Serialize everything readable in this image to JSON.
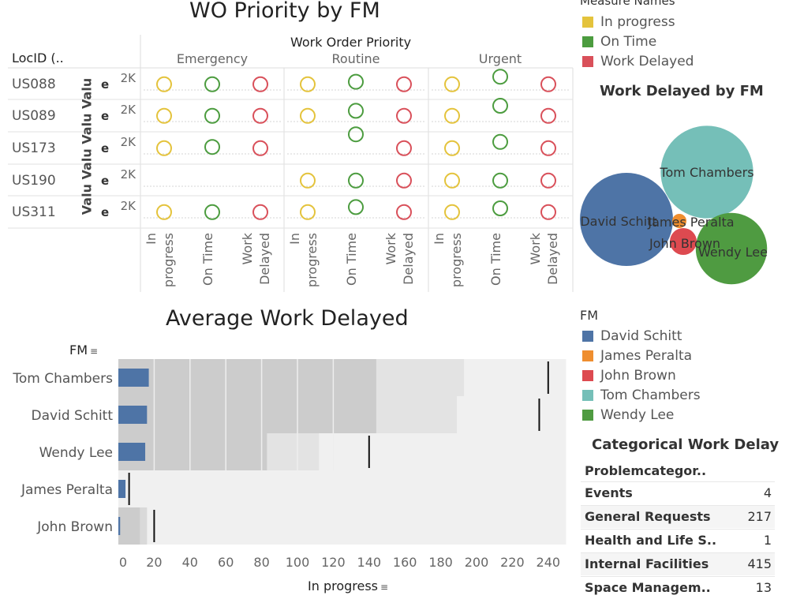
{
  "top": {
    "title": "WO Priority by FM",
    "row_header": "LocID (..",
    "col_title": "Work Order Priority",
    "priorities": [
      "Emergency",
      "Routine",
      "Urgent"
    ],
    "measures": [
      "In\nprogress",
      "On Time",
      "Work\nDelayed"
    ],
    "locations": [
      "US088",
      "US089",
      "US173",
      "US190",
      "US311"
    ],
    "value_axis_label": "Valu Valu Valu Valu",
    "e_glyph": "e",
    "tick_label": "2K"
  },
  "chart_data": [
    {
      "type": "scatter",
      "title": "WO Priority by FM",
      "note": "relative level of each circle within its row (0 = bottom, 1 = top); null = no mark",
      "rows": [
        "US088",
        "US089",
        "US173",
        "US190",
        "US311"
      ],
      "columns": [
        "Emergency",
        "Routine",
        "Urgent"
      ],
      "series": [
        {
          "name": "In progress",
          "values": [
            [
              0.35,
              0.35,
              0.35
            ],
            [
              0.35,
              0.35,
              0.35
            ],
            [
              0.35,
              null,
              0.35
            ],
            [
              null,
              0.35,
              0.35
            ],
            [
              0.35,
              0.35,
              0.35
            ]
          ]
        },
        {
          "name": "On Time",
          "values": [
            [
              0.35,
              0.45,
              0.65
            ],
            [
              0.35,
              0.55,
              0.75
            ],
            [
              0.4,
              0.9,
              0.6
            ],
            [
              null,
              0.35,
              0.35
            ],
            [
              0.35,
              0.55,
              0.5
            ]
          ]
        },
        {
          "name": "Work Delayed",
          "values": [
            [
              0.35,
              0.35,
              0.35
            ],
            [
              0.35,
              0.35,
              0.35
            ],
            [
              0.35,
              0.35,
              0.35
            ],
            [
              null,
              0.35,
              0.35
            ],
            [
              0.35,
              0.35,
              0.35
            ]
          ]
        }
      ]
    },
    {
      "type": "bubble",
      "title": "Work Delayed by FM",
      "series": [
        {
          "name": "David Schitt",
          "value": 240
        },
        {
          "name": "Tom Chambers",
          "value": 237
        },
        {
          "name": "Wendy Lee",
          "value": 141
        },
        {
          "name": "John Brown",
          "value": 20
        },
        {
          "name": "James Peralta",
          "value": 5
        }
      ]
    },
    {
      "type": "bar",
      "title": "Average Work Delayed",
      "xlabel": "In progress",
      "ylabel": "FM",
      "categories": [
        "Tom Chambers",
        "David Schitt",
        "Wendy Lee",
        "James Peralta",
        "John Brown"
      ],
      "values": [
        17,
        16,
        15,
        4,
        1
      ],
      "reference_line": [
        240,
        235,
        140,
        6,
        20
      ],
      "xlim": [
        0,
        250
      ],
      "xticks": [
        0,
        20,
        40,
        60,
        80,
        100,
        120,
        140,
        160,
        180,
        200,
        220,
        240
      ]
    }
  ],
  "legend_measures": {
    "title": "Measure Names",
    "items": [
      {
        "label": "In progress",
        "color": "#e4c33c"
      },
      {
        "label": "On Time",
        "color": "#4c9c3f"
      },
      {
        "label": "Work Delayed",
        "color": "#d9505a"
      }
    ]
  },
  "bubble_title": "Work Delayed by FM",
  "bar_title": "Average Work Delayed",
  "bar_axis_title": "In progress",
  "bar_row_header": "FM",
  "legend_fm": {
    "title": "FM",
    "items": [
      {
        "label": "David Schitt",
        "color": "#4e74a6"
      },
      {
        "label": "James Peralta",
        "color": "#ef8e2f"
      },
      {
        "label": "John Brown",
        "color": "#dd4a50"
      },
      {
        "label": "Tom Chambers",
        "color": "#75bfb8"
      },
      {
        "label": "Wendy Lee",
        "color": "#4f9b41"
      }
    ]
  },
  "categorical": {
    "title": "Categorical Work Delay",
    "header": "Problemcategor..",
    "rows": [
      {
        "name": "Events",
        "value": "4"
      },
      {
        "name": "General Requests",
        "value": "217"
      },
      {
        "name": "Health and Life S..",
        "value": "1"
      },
      {
        "name": "Internal Facilities",
        "value": "415"
      },
      {
        "name": "Space Managem..",
        "value": "13"
      }
    ]
  }
}
